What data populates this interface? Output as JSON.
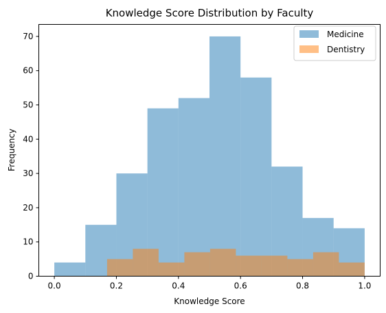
{
  "chart_data": {
    "type": "bar",
    "title": "Knowledge Score Distribution by Faculty",
    "xlabel": "Knowledge Score",
    "ylabel": "Frequency",
    "xlim": [
      -0.05,
      1.05
    ],
    "ylim": [
      0,
      73.5
    ],
    "xticks": [
      "0.0",
      "0.2",
      "0.4",
      "0.6",
      "0.8",
      "1.0"
    ],
    "xtick_values": [
      0.0,
      0.2,
      0.4,
      0.6,
      0.8,
      1.0
    ],
    "yticks": [
      "0",
      "10",
      "20",
      "30",
      "40",
      "50",
      "60",
      "70"
    ],
    "ytick_values": [
      0,
      10,
      20,
      30,
      40,
      50,
      60,
      70
    ],
    "grid": false,
    "legend_position": "top-right",
    "series": [
      {
        "name": "Medicine",
        "color": "#1f77b4",
        "opacity": 0.5,
        "bin_edges": [
          0.0,
          0.1,
          0.2,
          0.3,
          0.4,
          0.5,
          0.6,
          0.7,
          0.8,
          0.9,
          1.0
        ],
        "values": [
          4,
          15,
          30,
          49,
          52,
          70,
          58,
          32,
          17,
          14
        ]
      },
      {
        "name": "Dentistry",
        "color": "#ff7f0e",
        "opacity": 0.5,
        "bin_edges": [
          0.17,
          0.253,
          0.336,
          0.419,
          0.502,
          0.585,
          0.668,
          0.751,
          0.834,
          0.917,
          1.0
        ],
        "values": [
          5,
          8,
          4,
          7,
          8,
          6,
          6,
          5,
          7,
          4
        ]
      }
    ]
  }
}
